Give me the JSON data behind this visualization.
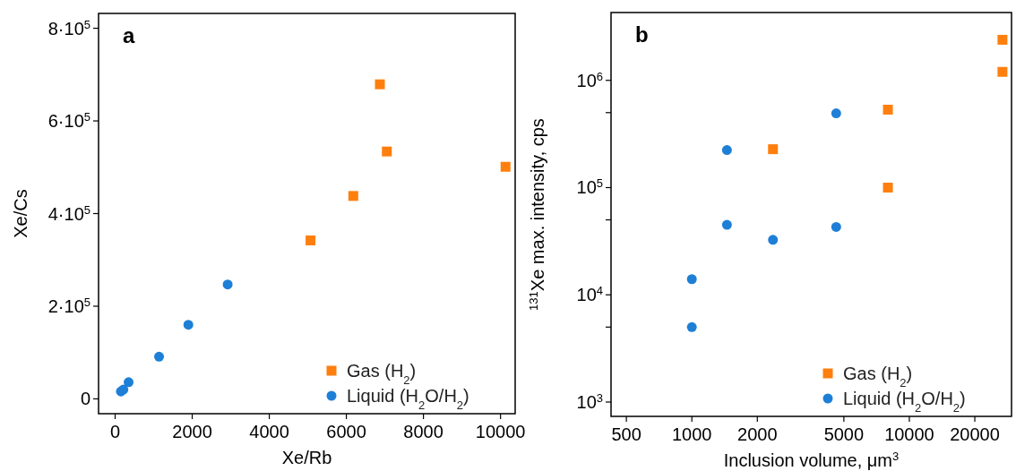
{
  "chart_data": [
    {
      "type": "scatter",
      "xlabel": "Xe/Rb",
      "ylabel": "Xe/Cs",
      "annotations": [
        "a"
      ],
      "xlim": [
        -430,
        10380
      ],
      "ylim": [
        -32000,
        832000
      ],
      "xticks": [
        0,
        2000,
        4000,
        6000,
        8000,
        10000
      ],
      "yticks": [
        0,
        {
          "value": 200000,
          "label": "2·10$^{5}$"
        },
        {
          "value": 400000,
          "label": "4·10$^{5}$"
        },
        {
          "value": 600000,
          "label": "6·10$^{5}$"
        },
        {
          "value": 800000,
          "label": "8·10$^{5}$"
        }
      ],
      "legend": "bottom right",
      "grid": false,
      "series": [
        {
          "name": "Gas (H$_{2}$)",
          "color": "#ff7f0e",
          "marker": "square",
          "x": [
            5070,
            6180,
            6870,
            7050,
            10130
          ],
          "values": [
            342000,
            438000,
            679000,
            534000,
            501000
          ]
        },
        {
          "name": "Liquid (H$_{2}$O/H$_{2}$)",
          "color": "#1e7fd7",
          "marker": "circle",
          "x": [
            150,
            215,
            350,
            1140,
            1900,
            2920
          ],
          "values": [
            16000,
            20000,
            36000,
            91000,
            160000,
            247000
          ]
        }
      ]
    },
    {
      "type": "scatter",
      "xlabel": "Inclusion volume, μm$^{3}$",
      "ylabel": "$^{131}$Xe max. intensity, cps",
      "annotations": [
        "b"
      ],
      "log": "xy",
      "xlim": [
        425,
        29500
      ],
      "ylim": [
        735,
        4290000
      ],
      "xticks": [
        500,
        1000,
        2000,
        5000,
        10000,
        20000
      ],
      "yticks": [
        {
          "value": 1000,
          "label": "10$^{3}$"
        },
        {
          "value": 5000,
          "label": null
        },
        {
          "value": 10000,
          "label": "10$^{4}$"
        },
        {
          "value": 50000,
          "label": null
        },
        {
          "value": 100000,
          "label": "10$^{5}$"
        },
        {
          "value": 500000,
          "label": null
        },
        {
          "value": 1000000,
          "label": "10$^{6}$"
        }
      ],
      "legend": "bottom right",
      "grid": false,
      "series": [
        {
          "name": "Gas (H$_{2}$)",
          "color": "#ff7f0e",
          "marker": "square",
          "x": [
            2360,
            7970,
            7970,
            26800,
            26800
          ],
          "values": [
            228000,
            533000,
            100000,
            2390000,
            1200000
          ]
        },
        {
          "name": "Liquid (H$_{2}$O/H$_{2}$)",
          "color": "#1e7fd7",
          "marker": "circle",
          "x": [
            1000,
            1000,
            1450,
            1450,
            2360,
            4610,
            4610
          ],
          "values": [
            14000,
            5000,
            224000,
            45000,
            32600,
            492000,
            43000
          ]
        }
      ]
    }
  ]
}
